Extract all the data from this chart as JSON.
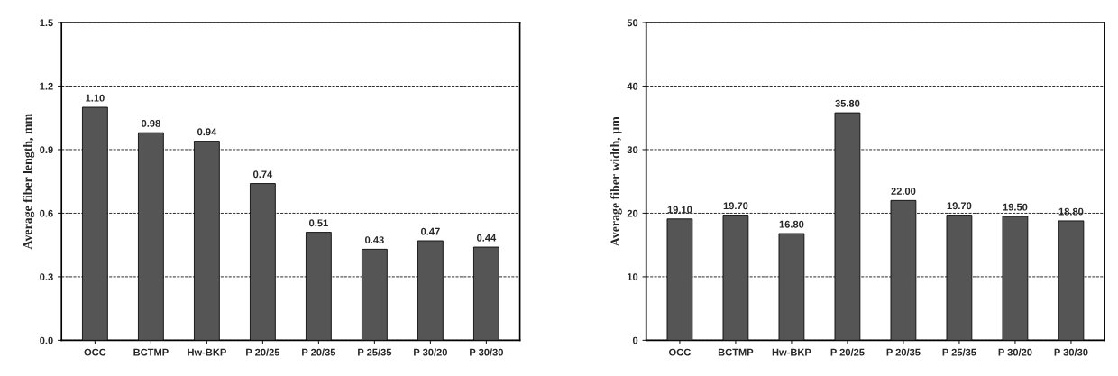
{
  "chart_data": [
    {
      "type": "bar",
      "ylabel": "Average fiber length, mm",
      "categories": [
        "OCC",
        "BCTMP",
        "Hw-BKP",
        "P 20/25",
        "P 20/35",
        "P 25/35",
        "P 30/20",
        "P 30/30"
      ],
      "values": [
        1.1,
        0.98,
        0.94,
        0.74,
        0.51,
        0.43,
        0.47,
        0.44
      ],
      "value_labels": [
        "1.10",
        "0.98",
        "0.94",
        "0.74",
        "0.51",
        "0.43",
        "0.47",
        "0.44"
      ],
      "color": "#555555",
      "ylim": [
        0,
        1.5
      ],
      "yticks": [
        {
          "value": 0,
          "label": "0.0"
        },
        {
          "value": 0.3,
          "label": "0.3"
        },
        {
          "value": 0.6,
          "label": "0.6"
        },
        {
          "value": 0.9,
          "label": "0.9"
        },
        {
          "value": 1.2,
          "label": "1.2"
        },
        {
          "value": 1.5,
          "label": "1.5"
        }
      ],
      "grid": "y",
      "legend": false
    },
    {
      "type": "bar",
      "ylabel": "Average fiber width, µm",
      "categories": [
        "OCC",
        "BCTMP",
        "Hw-BKP",
        "P 20/25",
        "P 20/35",
        "P 25/35",
        "P 30/20",
        "P 30/30"
      ],
      "values": [
        19.1,
        19.7,
        16.8,
        35.8,
        22.0,
        19.7,
        19.5,
        18.8
      ],
      "value_labels": [
        "19.10",
        "19.70",
        "16.80",
        "35.80",
        "22.00",
        "19.70",
        "19.50",
        "18.80"
      ],
      "color": "#555555",
      "ylim": [
        0,
        50
      ],
      "yticks": [
        0,
        10,
        20,
        30,
        40,
        50
      ],
      "grid": "y",
      "legend": false
    }
  ]
}
